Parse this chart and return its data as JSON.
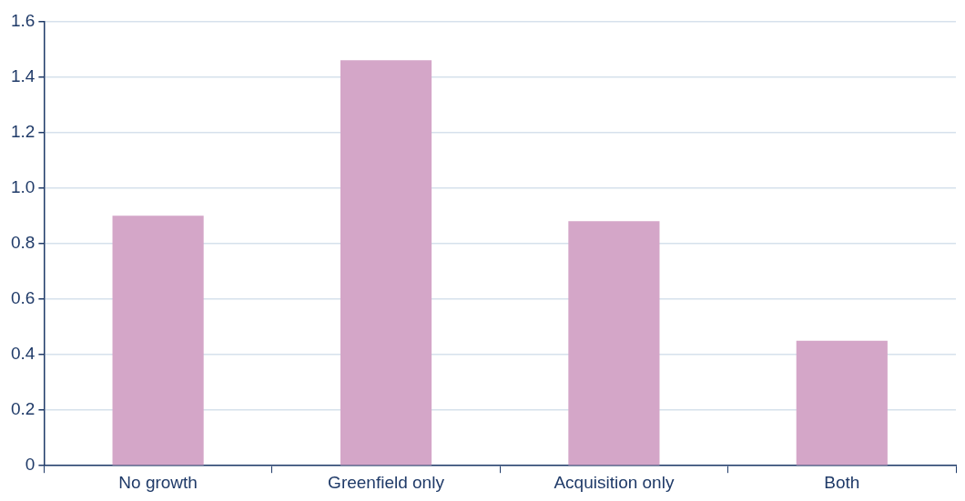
{
  "chart_data": {
    "type": "bar",
    "categories": [
      "No growth",
      "Greenfield only",
      "Acquisition only",
      "Both"
    ],
    "values": [
      0.9,
      1.46,
      0.88,
      0.45
    ],
    "color": "#d4a6c8",
    "ylim": [
      0,
      1.6
    ],
    "yticks": [
      0,
      0.2,
      0.4,
      0.6,
      0.8,
      {
        "value": 1,
        "label": "1.0"
      },
      1.2,
      1.4,
      1.6
    ],
    "grid": "y",
    "legend": false
  }
}
